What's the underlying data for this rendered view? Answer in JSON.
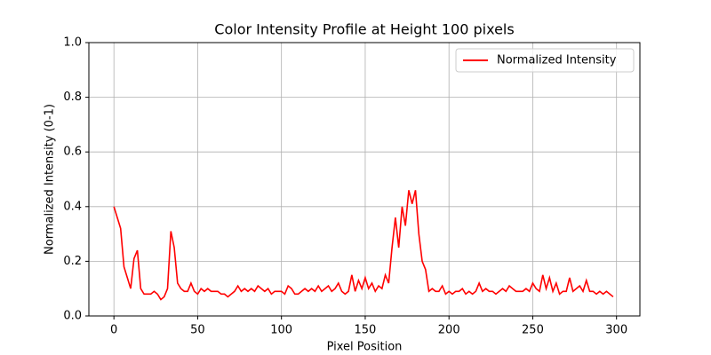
{
  "chart_data": {
    "type": "line",
    "title": "Color Intensity Profile at Height 100 pixels",
    "x_label": "Pixel Position",
    "y_label": "Normalized Intensity (0-1)",
    "x": [
      0,
      2,
      4,
      6,
      8,
      10,
      12,
      14,
      16,
      18,
      20,
      22,
      24,
      26,
      28,
      30,
      32,
      34,
      36,
      38,
      40,
      42,
      44,
      46,
      48,
      50,
      52,
      54,
      56,
      58,
      60,
      62,
      64,
      66,
      68,
      70,
      72,
      74,
      76,
      78,
      80,
      82,
      84,
      86,
      88,
      90,
      92,
      94,
      96,
      98,
      100,
      102,
      104,
      106,
      108,
      110,
      112,
      114,
      116,
      118,
      120,
      122,
      124,
      126,
      128,
      130,
      132,
      134,
      136,
      138,
      140,
      142,
      144,
      146,
      148,
      150,
      152,
      154,
      156,
      158,
      160,
      162,
      164,
      166,
      168,
      170,
      172,
      174,
      176,
      178,
      180,
      182,
      184,
      186,
      188,
      190,
      192,
      194,
      196,
      198,
      200,
      202,
      204,
      206,
      208,
      210,
      212,
      214,
      216,
      218,
      220,
      222,
      224,
      226,
      228,
      230,
      232,
      234,
      236,
      238,
      240,
      242,
      244,
      246,
      248,
      250,
      252,
      254,
      256,
      258,
      260,
      262,
      264,
      266,
      268,
      270,
      272,
      274,
      276,
      278,
      280,
      282,
      284,
      286,
      288,
      290,
      292,
      294,
      296,
      298
    ],
    "series": [
      {
        "name": "Normalized Intensity",
        "color": "#ff0000",
        "values": [
          0.4,
          0.36,
          0.32,
          0.18,
          0.14,
          0.1,
          0.21,
          0.24,
          0.1,
          0.08,
          0.08,
          0.08,
          0.09,
          0.08,
          0.06,
          0.07,
          0.1,
          0.31,
          0.25,
          0.12,
          0.1,
          0.09,
          0.09,
          0.12,
          0.09,
          0.08,
          0.1,
          0.09,
          0.1,
          0.09,
          0.09,
          0.09,
          0.08,
          0.08,
          0.07,
          0.08,
          0.09,
          0.11,
          0.09,
          0.1,
          0.09,
          0.1,
          0.09,
          0.11,
          0.1,
          0.09,
          0.1,
          0.08,
          0.09,
          0.09,
          0.09,
          0.08,
          0.11,
          0.1,
          0.08,
          0.08,
          0.09,
          0.1,
          0.09,
          0.1,
          0.09,
          0.11,
          0.09,
          0.1,
          0.11,
          0.09,
          0.1,
          0.12,
          0.09,
          0.08,
          0.09,
          0.15,
          0.09,
          0.13,
          0.1,
          0.14,
          0.1,
          0.12,
          0.09,
          0.11,
          0.1,
          0.15,
          0.12,
          0.25,
          0.36,
          0.25,
          0.4,
          0.33,
          0.46,
          0.41,
          0.46,
          0.3,
          0.2,
          0.17,
          0.09,
          0.1,
          0.09,
          0.09,
          0.11,
          0.08,
          0.09,
          0.08,
          0.09,
          0.09,
          0.1,
          0.08,
          0.09,
          0.08,
          0.09,
          0.12,
          0.09,
          0.1,
          0.09,
          0.09,
          0.08,
          0.09,
          0.1,
          0.09,
          0.11,
          0.1,
          0.09,
          0.09,
          0.09,
          0.1,
          0.09,
          0.12,
          0.1,
          0.09,
          0.15,
          0.1,
          0.14,
          0.09,
          0.12,
          0.08,
          0.09,
          0.09,
          0.14,
          0.09,
          0.1,
          0.11,
          0.09,
          0.13,
          0.09,
          0.09,
          0.08,
          0.09,
          0.08,
          0.09,
          0.08,
          0.07
        ]
      }
    ],
    "xlim": [
      -14.95,
      313.95
    ],
    "xticks": [
      0,
      50,
      100,
      150,
      200,
      250,
      300
    ],
    "ylim": [
      0,
      1
    ],
    "yticks": [
      {
        "value": 0,
        "label": "0.0"
      },
      {
        "value": 0.2,
        "label": "0.2"
      },
      {
        "value": 0.4,
        "label": "0.4"
      },
      {
        "value": 0.6,
        "label": "0.6"
      },
      {
        "value": 0.8,
        "label": "0.8"
      },
      {
        "value": 1,
        "label": "1.0"
      }
    ],
    "grid": true,
    "legend": "upper-right"
  }
}
